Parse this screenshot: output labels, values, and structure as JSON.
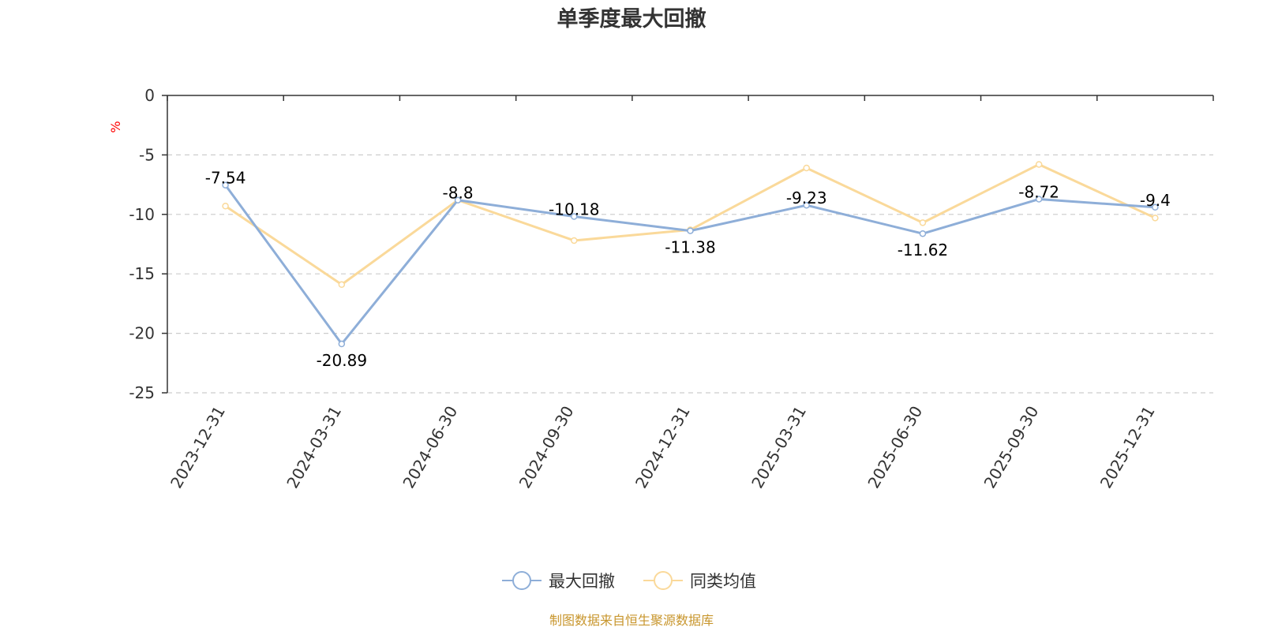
{
  "chart_data": {
    "type": "line",
    "title": "单季度最大回撤",
    "ylabel": "%",
    "categories": [
      "2023-12-31",
      "2024-03-31",
      "2024-06-30",
      "2024-09-30",
      "2024-12-31",
      "2025-03-31",
      "2025-06-30",
      "2025-09-30",
      "2025-12-31"
    ],
    "yticks": [
      "0",
      "-5",
      "-10",
      "-15",
      "-20",
      "-25"
    ],
    "ylim": [
      -25,
      0
    ],
    "grid": true,
    "legend_position": "bottom",
    "series": [
      {
        "name": "最大回撤",
        "color": "#8eaed8",
        "values": [
          -7.54,
          -20.89,
          -8.8,
          -10.18,
          -11.38,
          -9.23,
          -11.62,
          -8.72,
          -9.4
        ],
        "labels": [
          "-7.54",
          "-20.89",
          "-8.8",
          "-10.18",
          "-11.38",
          "-9.23",
          "-11.62",
          "-8.72",
          "-9.4"
        ]
      },
      {
        "name": "同类均值",
        "color": "#fad99a",
        "values": [
          -9.3,
          -15.9,
          -8.8,
          -12.2,
          -11.3,
          -6.1,
          -10.7,
          -5.8,
          -10.3
        ]
      }
    ]
  },
  "source_text": "制图数据来自恒生聚源数据库",
  "source_color": "#c8962d"
}
